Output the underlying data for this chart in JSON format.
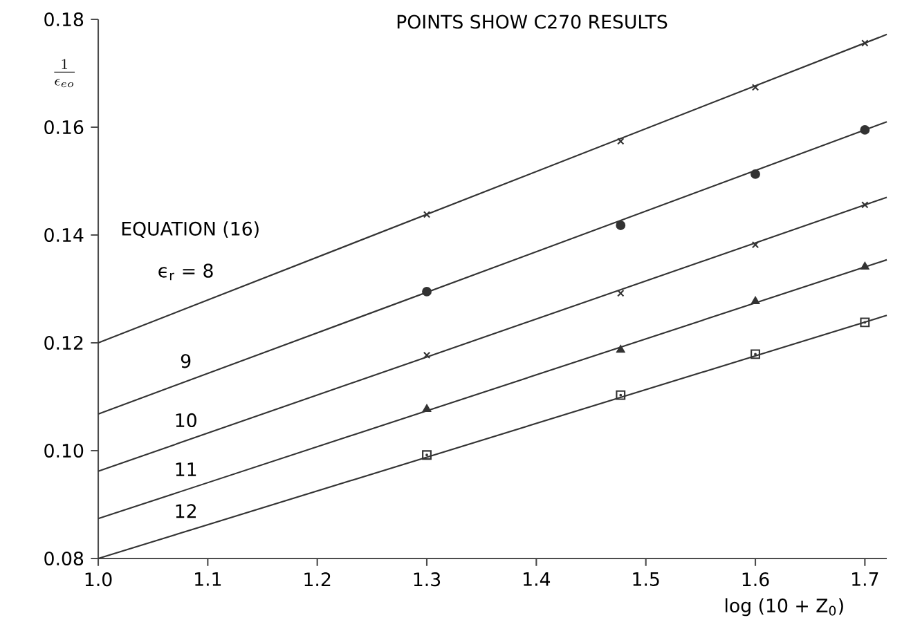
{
  "chart_data": {
    "type": "line",
    "title": "POINTS SHOW C270 RESULTS",
    "xlabel": "log (10 + Z$_{0}$)",
    "ylabel": "\\frac{1}{\\epsilon_{eo}}",
    "annotations": [
      "EQUATION (16)"
    ],
    "xlim": [
      1.0,
      1.72
    ],
    "ylim": [
      0.08,
      0.18
    ],
    "xticks": [
      {
        "value": 1.0,
        "label": "1.0"
      },
      {
        "value": 1.1,
        "label": "1.1"
      },
      {
        "value": 1.2,
        "label": "1.2"
      },
      {
        "value": 1.3,
        "label": "1.3"
      },
      {
        "value": 1.4,
        "label": "1.4"
      },
      {
        "value": 1.5,
        "label": "1.5"
      },
      {
        "value": 1.6,
        "label": "1.6"
      },
      {
        "value": 1.7,
        "label": "1.7"
      }
    ],
    "yticks": [
      {
        "value": 0.08,
        "label": "0.08"
      },
      {
        "value": 0.1,
        "label": "0.10"
      },
      {
        "value": 0.12,
        "label": "0.12"
      },
      {
        "value": 0.14,
        "label": "0.14"
      },
      {
        "value": 0.16,
        "label": "0.16"
      },
      {
        "value": 0.18,
        "label": "0.18"
      }
    ],
    "series": [
      {
        "name": "ϵ$_{r}$ = 8",
        "color": "#333333",
        "marker": "none",
        "x": [
          1.0,
          1.72
        ],
        "values": [
          0.12,
          0.1772
        ]
      },
      {
        "name": "9",
        "color": "#333333",
        "marker": "none",
        "x": [
          1.0,
          1.72
        ],
        "values": [
          0.1068,
          0.161
        ]
      },
      {
        "name": "10",
        "color": "#333333",
        "marker": "none",
        "x": [
          1.0,
          1.72
        ],
        "values": [
          0.0962,
          0.147
        ]
      },
      {
        "name": "11",
        "color": "#333333",
        "marker": "none",
        "x": [
          1.0,
          1.72
        ],
        "values": [
          0.0874,
          0.1354
        ]
      },
      {
        "name": "12",
        "color": "#333333",
        "marker": "none",
        "x": [
          1.0,
          1.72
        ],
        "values": [
          0.08,
          0.1251
        ]
      },
      {
        "type": "scatter",
        "color": "#333333",
        "marker": "cross",
        "x": [
          1.3,
          1.477,
          1.6,
          1.7
        ],
        "values": [
          0.1438,
          0.1574,
          0.1674,
          0.1756
        ]
      },
      {
        "type": "scatter",
        "color": "#333333",
        "marker": "circle",
        "x": [
          1.3,
          1.477,
          1.6,
          1.7
        ],
        "values": [
          0.1295,
          0.1418,
          0.1513,
          0.1595
        ]
      },
      {
        "type": "scatter",
        "color": "#333333",
        "marker": "cross",
        "x": [
          1.3,
          1.477,
          1.6,
          1.7
        ],
        "values": [
          0.1177,
          0.1292,
          0.1382,
          0.1456
        ]
      },
      {
        "type": "scatter",
        "color": "#333333",
        "marker": "triangle",
        "x": [
          1.3,
          1.477,
          1.6,
          1.7
        ],
        "values": [
          0.1077,
          0.1187,
          0.1277,
          0.1341
        ]
      },
      {
        "type": "scatter",
        "color": "#333333",
        "marker": "square",
        "x": [
          1.3,
          1.477,
          1.6,
          1.7
        ],
        "values": [
          0.0992,
          0.1103,
          0.1179,
          0.1238
        ]
      }
    ]
  }
}
